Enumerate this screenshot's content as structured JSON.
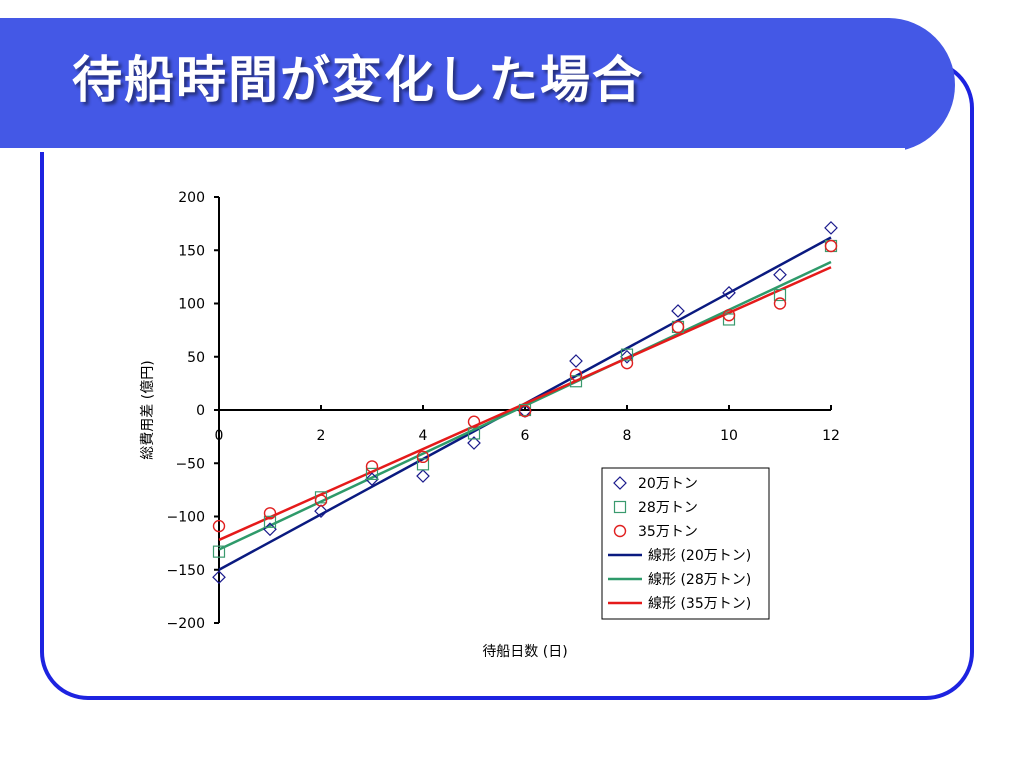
{
  "slide": {
    "title": "待船時間が変化した場合",
    "colors": {
      "title_bar": "#4458e6",
      "frame": "#1d23e0"
    }
  },
  "chart_data": {
    "type": "scatter",
    "xlabel": "待船日数 (日)",
    "ylabel": "総費用差 (億円)",
    "xlim": [
      0,
      12
    ],
    "ylim": [
      -200,
      200
    ],
    "xticks": [
      0,
      2,
      4,
      6,
      8,
      10,
      12
    ],
    "yticks": [
      -200,
      -150,
      -100,
      -50,
      0,
      50,
      100,
      150,
      200
    ],
    "legend_position": "lower-right",
    "x": [
      0,
      1,
      2,
      3,
      4,
      5,
      6,
      7,
      8,
      9,
      10,
      11,
      12
    ],
    "series": [
      {
        "name": "20万トン",
        "marker": "diamond",
        "color": "#1a1a8c",
        "values": [
          -157,
          -112,
          -95,
          -65,
          -62,
          -31,
          -1,
          46,
          50,
          93,
          110,
          127,
          171
        ]
      },
      {
        "name": "28万トン",
        "marker": "square",
        "color": "#3a9a6e",
        "values": [
          -133,
          -105,
          -82,
          -60,
          -51,
          -22,
          0,
          27,
          52,
          78,
          85,
          108,
          154
        ]
      },
      {
        "name": "35万トン",
        "marker": "circle",
        "color": "#e02020",
        "values": [
          -109,
          -97,
          -85,
          -53,
          -44,
          -11,
          -1,
          33,
          44,
          78,
          89,
          100,
          154
        ]
      }
    ],
    "trendlines": [
      {
        "name": "線形 (20万トン)",
        "color": "#0a1a80",
        "start": [
          0,
          -150
        ],
        "end": [
          12,
          162
        ]
      },
      {
        "name": "線形 (28万トン)",
        "color": "#2e9a6a",
        "start": [
          0,
          -131
        ],
        "end": [
          12,
          139
        ]
      },
      {
        "name": "線形 (35万トン)",
        "color": "#e51a1a",
        "start": [
          0,
          -122
        ],
        "end": [
          12,
          134
        ]
      }
    ]
  }
}
